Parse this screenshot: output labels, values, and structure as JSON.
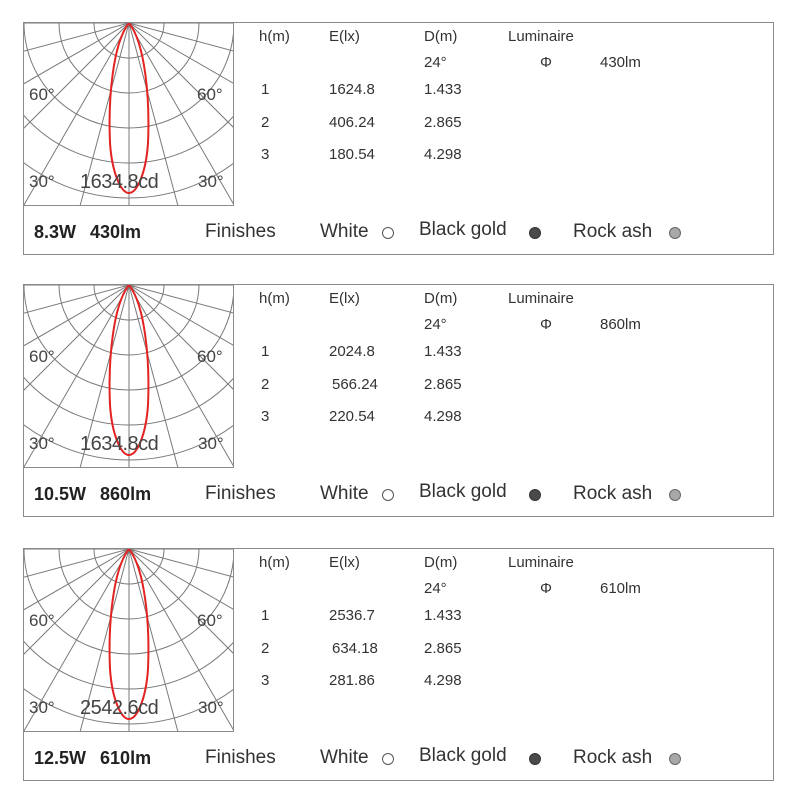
{
  "chart_labels": {
    "angle_60": "60°",
    "angle_30": "30°"
  },
  "table_headers": {
    "h": "h(m)",
    "e": "E(lx)",
    "d": "D(m)",
    "lum": "Luminaire"
  },
  "beam_angle": "24°",
  "phi_symbol": "Φ",
  "finishes": {
    "label": "Finishes",
    "options": [
      {
        "name": "White",
        "color": "#ffffff"
      },
      {
        "name": "Black gold",
        "color": "#4a4a4a"
      },
      {
        "name": "Rock ash",
        "color": "#a8a8a8"
      }
    ]
  },
  "curve_color": "#e32222",
  "panels": [
    {
      "power": "8.3W",
      "lumen": "430lm",
      "peak": "1634.8cd",
      "luminaire_lm": "430lm",
      "rows": [
        {
          "h": "1",
          "e": "1624.8",
          "d": "1.433"
        },
        {
          "h": "2",
          "e": "406.24",
          "d": "2.865"
        },
        {
          "h": "3",
          "e": "180.54",
          "d": "4.298"
        }
      ]
    },
    {
      "power": "10.5W",
      "lumen": "860lm",
      "peak": "1634.8cd",
      "luminaire_lm": "860lm",
      "rows": [
        {
          "h": "1",
          "e": "2024.8",
          "d": "1.433"
        },
        {
          "h": "2",
          "e": "566.24",
          "d": "2.865"
        },
        {
          "h": "3",
          "e": "220.54",
          "d": "4.298"
        }
      ]
    },
    {
      "power": "12.5W",
      "lumen": "610lm",
      "peak": "2542.6cd",
      "luminaire_lm": "610lm",
      "rows": [
        {
          "h": "1",
          "e": "2536.7",
          "d": "1.433"
        },
        {
          "h": "2",
          "e": "634.18",
          "d": "2.865"
        },
        {
          "h": "3",
          "e": "281.86",
          "d": "4.298"
        }
      ]
    }
  ]
}
